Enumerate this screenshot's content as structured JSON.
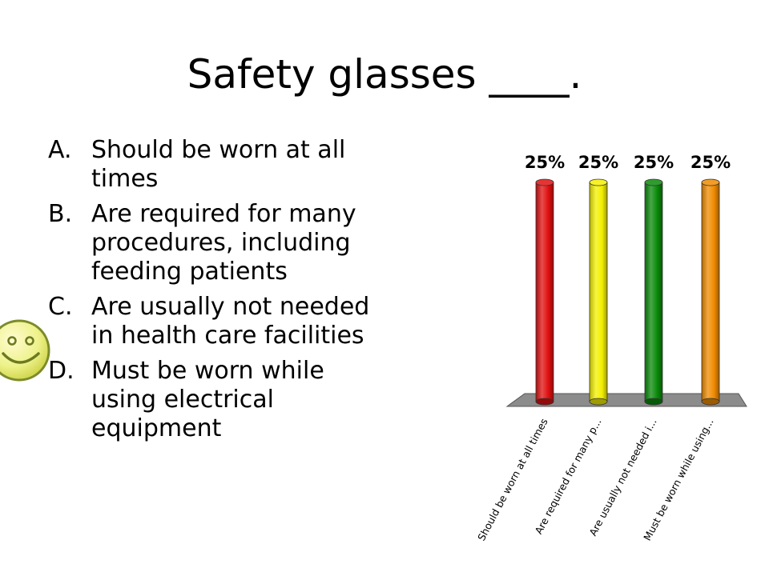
{
  "slide": {
    "title": "Safety glasses ____.",
    "options": [
      {
        "letter": "A.",
        "text": "Should be worn at all times"
      },
      {
        "letter": "B.",
        "text": "Are required for many procedures, including feeding patients"
      },
      {
        "letter": "C.",
        "text": "Are usually not needed in health care facilities"
      },
      {
        "letter": "D.",
        "text": "Must be worn while using electrical equipment"
      }
    ],
    "correct_marker_icon": "smiley-face-icon",
    "correct_option": "C"
  },
  "chart_data": {
    "type": "bar",
    "categories": [
      "Should be worn at all times",
      "Are required for many p...",
      "Are usually not needed i...",
      "Must be worn while using..."
    ],
    "values": [
      25,
      25,
      25,
      25
    ],
    "value_labels": [
      "25%",
      "25%",
      "25%",
      "25%"
    ],
    "colors": [
      "#e01010",
      "#f4f000",
      "#0a8a0a",
      "#f08c00"
    ],
    "floor_color": "#8c8c8c",
    "ylim": [
      0,
      25
    ],
    "grid": false,
    "style": "3d-cylinder"
  }
}
